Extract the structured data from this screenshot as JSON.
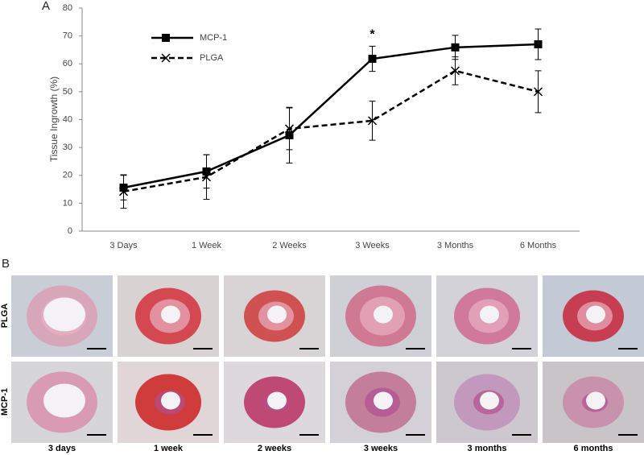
{
  "chart_data": {
    "type": "line",
    "panel_label": "A",
    "y_label": "Tissue Ingrowth (%)",
    "categories": [
      "3 Days",
      "1 Week",
      "2 Weeks",
      "3 Weeks",
      "3 Months",
      "6 Months"
    ],
    "series": [
      {
        "name": "MCP-1",
        "color": "#000000",
        "line_style": "solid",
        "marker": "square",
        "values": [
          15.6,
          21.4,
          34.4,
          61.8,
          65.9,
          67.0
        ],
        "errors": [
          4.4,
          6.0,
          10.0,
          4.5,
          4.3,
          5.5
        ]
      },
      {
        "name": "PLGA",
        "color": "#000000",
        "line_style": "dashed",
        "marker": "x",
        "values": [
          14.2,
          19.4,
          36.7,
          39.6,
          57.5,
          50.0
        ],
        "errors": [
          6.0,
          8.0,
          7.5,
          7.0,
          5.0,
          7.5
        ]
      }
    ],
    "annotations": [
      {
        "text": "*",
        "category": "3 Weeks"
      }
    ],
    "ylim": [
      0,
      80
    ],
    "yticks": [
      0,
      10,
      20,
      30,
      40,
      50,
      60,
      70,
      80
    ],
    "grid": false,
    "legend": "upper left"
  },
  "image_panel": {
    "panel_label": "B",
    "rows": [
      "PLGA",
      "MCP-1"
    ],
    "columns": [
      "3 days",
      "1 week",
      "2 weeks",
      "3 weeks",
      "3 months",
      "6 months"
    ]
  }
}
